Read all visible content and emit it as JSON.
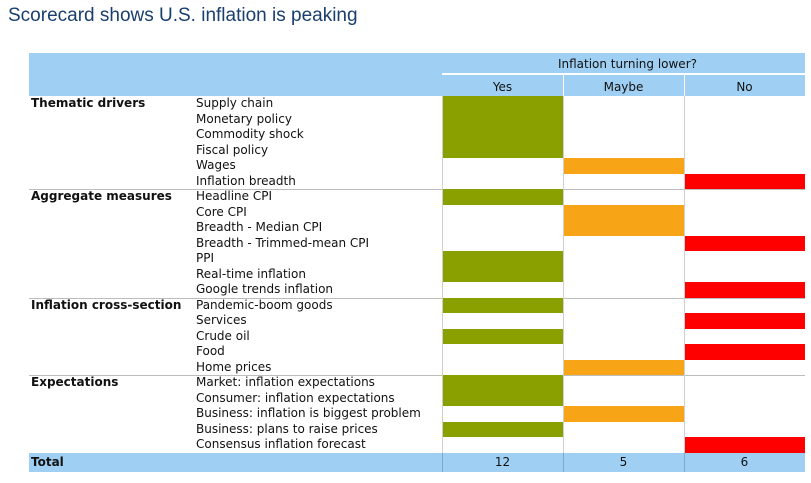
{
  "title": "Scorecard shows U.S. inflation is peaking",
  "chart_data": {
    "type": "table",
    "header_title": "Inflation turning lower?",
    "columns": [
      "Yes",
      "Maybe",
      "No"
    ],
    "colors": {
      "Yes": "#8aa000",
      "Maybe": "#f7a416",
      "No": "#ff0000",
      "header": "#9fd0f3"
    },
    "groups": [
      {
        "name": "Thematic drivers",
        "rows": [
          {
            "label": "Supply chain",
            "answer": "Yes"
          },
          {
            "label": "Monetary policy",
            "answer": "Yes"
          },
          {
            "label": "Commodity shock",
            "answer": "Yes"
          },
          {
            "label": "Fiscal policy",
            "answer": "Yes"
          },
          {
            "label": "Wages",
            "answer": "Maybe"
          },
          {
            "label": "Inflation breadth",
            "answer": "No"
          }
        ]
      },
      {
        "name": "Aggregate measures",
        "rows": [
          {
            "label": "Headline CPI",
            "answer": "Yes"
          },
          {
            "label": "Core CPI",
            "answer": "Maybe"
          },
          {
            "label": "Breadth - Median CPI",
            "answer": "Maybe"
          },
          {
            "label": "Breadth - Trimmed-mean CPI",
            "answer": "No"
          },
          {
            "label": "PPI",
            "answer": "Yes"
          },
          {
            "label": "Real-time inflation",
            "answer": "Yes"
          },
          {
            "label": "Google trends inflation",
            "answer": "No"
          }
        ]
      },
      {
        "name": "Inflation cross-section",
        "rows": [
          {
            "label": "Pandemic-boom goods",
            "answer": "Yes"
          },
          {
            "label": "Services",
            "answer": "No"
          },
          {
            "label": "Crude oil",
            "answer": "Yes"
          },
          {
            "label": "Food",
            "answer": "No"
          },
          {
            "label": "Home prices",
            "answer": "Maybe"
          }
        ]
      },
      {
        "name": "Expectations",
        "rows": [
          {
            "label": "Market: inflation expectations",
            "answer": "Yes"
          },
          {
            "label": "Consumer: inflation expectations",
            "answer": "Yes"
          },
          {
            "label": "Business: inflation is biggest problem",
            "answer": "Maybe"
          },
          {
            "label": "Business: plans to raise prices",
            "answer": "Yes"
          },
          {
            "label": "Consensus inflation forecast",
            "answer": "No"
          }
        ]
      }
    ],
    "total": {
      "label": "Total",
      "values": {
        "Yes": "12",
        "Maybe": "5",
        "No": "6"
      }
    }
  }
}
